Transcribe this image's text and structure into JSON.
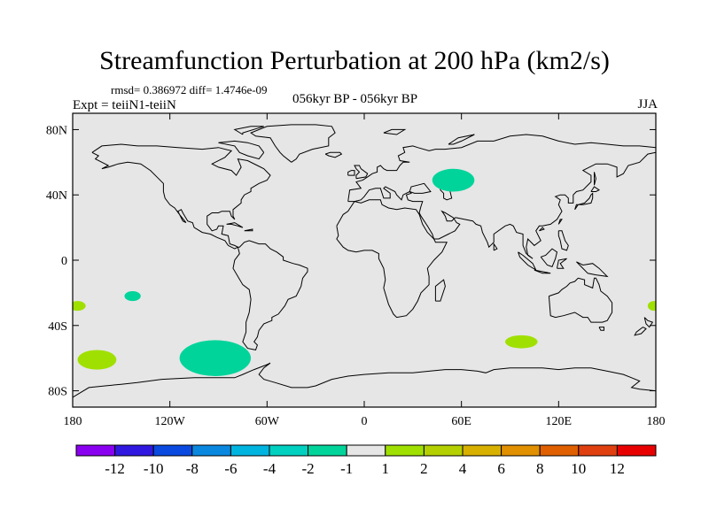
{
  "title": "Streamfunction Perturbation at 200 hPa (km2/s)",
  "stats": "rmsd= 0.386972 diff= 1.4746e-09",
  "experiment": "Expt = teiiN1-teiiN",
  "center_label": "056kyr BP - 056kyr BP",
  "season": "JJA",
  "map": {
    "projection": "cylindrical-equidistant",
    "background_color": "#e6e6e6",
    "coastline_color": "#000000",
    "lon_range": [
      -180,
      180
    ],
    "lat_range": [
      -90,
      90
    ],
    "lat_ticks": [
      {
        "value": 80,
        "label": "80N"
      },
      {
        "value": 40,
        "label": "40N"
      },
      {
        "value": 0,
        "label": "0"
      },
      {
        "value": -40,
        "label": "40S"
      },
      {
        "value": -80,
        "label": "80S"
      }
    ],
    "lon_ticks": [
      {
        "value": -180,
        "label": "180"
      },
      {
        "value": -120,
        "label": "120W"
      },
      {
        "value": -60,
        "label": "60W"
      },
      {
        "value": 0,
        "label": "0"
      },
      {
        "value": 60,
        "label": "60E"
      },
      {
        "value": 120,
        "label": "120E"
      },
      {
        "value": 180,
        "label": "180"
      }
    ]
  },
  "anomalies": [
    {
      "name": "central-asia",
      "lon": 55,
      "lat": 49,
      "rlon": 13,
      "rlat": 7,
      "value_range": "-2 to -1",
      "color": "#00d49a"
    },
    {
      "name": "south-pacific-east",
      "lon": -92,
      "lat": -60,
      "rlon": 22,
      "rlat": 11,
      "value_range": "-2 to -1",
      "color": "#00d49a"
    },
    {
      "name": "south-pacific-west",
      "lon": -143,
      "lat": -22,
      "rlon": 5,
      "rlat": 3,
      "value_range": "-2 to -1",
      "color": "#00d49a"
    },
    {
      "name": "south-pacific-far-west",
      "lon": -165,
      "lat": -61,
      "rlon": 12,
      "rlat": 6,
      "value_range": "1 to 2",
      "color": "#a0e000"
    },
    {
      "name": "southern-indian-ocean",
      "lon": 97,
      "lat": -50,
      "rlon": 10,
      "rlat": 4,
      "value_range": "1 to 2",
      "color": "#a0e000"
    },
    {
      "name": "dateline-west",
      "lon": -177,
      "lat": -28,
      "rlon": 5,
      "rlat": 3,
      "value_range": "1 to 2",
      "color": "#a0e000"
    },
    {
      "name": "dateline-east",
      "lon": 179,
      "lat": -28,
      "rlon": 4,
      "rlat": 3,
      "value_range": "1 to 2",
      "color": "#a0e000"
    }
  ],
  "colorbar": {
    "colors": [
      "#8a00f0",
      "#3018e0",
      "#0a4ae0",
      "#0a88e0",
      "#00b4e0",
      "#00d0c0",
      "#00d49a",
      "#e6e6e6",
      "#a0e000",
      "#b4d000",
      "#d8b000",
      "#e09000",
      "#e06000",
      "#e04010",
      "#e80000"
    ],
    "labels": [
      "-12",
      "-10",
      "-8",
      "-6",
      "-4",
      "-2",
      "-1",
      "1",
      "2",
      "4",
      "6",
      "8",
      "10",
      "12"
    ]
  }
}
